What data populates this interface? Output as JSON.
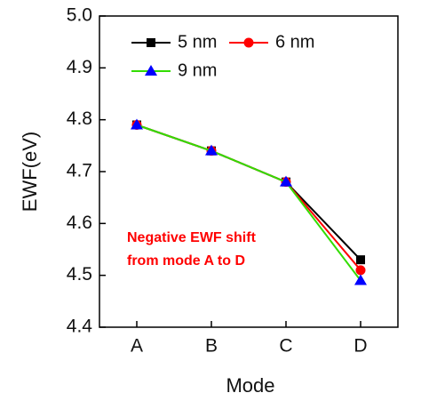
{
  "chart_data": {
    "type": "line",
    "xlabel": "Mode",
    "ylabel": "EWF(eV)",
    "categories": [
      "A",
      "B",
      "C",
      "D"
    ],
    "series": [
      {
        "name": "5 nm",
        "color": "#000000",
        "marker": "square",
        "marker_color": "#000000",
        "values": [
          4.79,
          4.74,
          4.68,
          4.53
        ]
      },
      {
        "name": "6 nm",
        "color": "#ff0000",
        "marker": "circle",
        "marker_color": "#ff0000",
        "values": [
          4.79,
          4.74,
          4.68,
          4.51
        ]
      },
      {
        "name": "9 nm",
        "color": "#33dd00",
        "marker": "triangle",
        "marker_color": "#0000ff",
        "values": [
          4.79,
          4.74,
          4.68,
          4.49
        ]
      }
    ],
    "ylim": [
      4.4,
      5.0
    ],
    "yticks": [
      4.4,
      4.5,
      4.6,
      4.7,
      4.8,
      4.9,
      {
        "value": 5.0,
        "label": "5.0"
      }
    ],
    "annotation": {
      "lines": [
        "Negative EWF shift",
        "from mode A to D"
      ],
      "color": "#ff0000"
    },
    "grid": false
  }
}
